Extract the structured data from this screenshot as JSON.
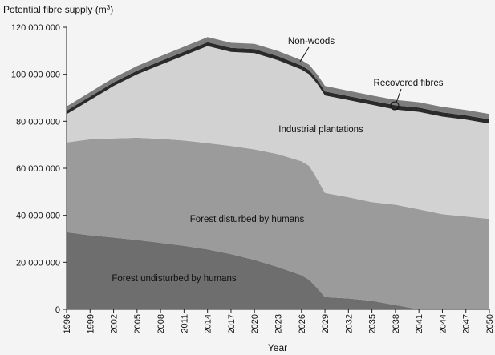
{
  "chart_data": {
    "type": "area",
    "stacked": true,
    "ylabel_base": "Potential fibre supply (m",
    "ylabel_sup": "3",
    "ylabel_end": ")",
    "xlabel": "Year",
    "ylim": [
      0,
      120000000
    ],
    "xlim": [
      1996,
      2050
    ],
    "grid": false,
    "x_ticks": [
      1996,
      1999,
      2002,
      2005,
      2008,
      2011,
      2014,
      2017,
      2020,
      2023,
      2026,
      2029,
      2032,
      2035,
      2038,
      2041,
      2044,
      2047,
      2050
    ],
    "y_ticks": [
      {
        "value": 0,
        "label": "0"
      },
      {
        "value": 20000000,
        "label": "20 000 000"
      },
      {
        "value": 40000000,
        "label": "40 000 000"
      },
      {
        "value": 60000000,
        "label": "60 000 000"
      },
      {
        "value": 80000000,
        "label": "80 000 000"
      },
      {
        "value": 100000000,
        "label": "100 000 000"
      },
      {
        "value": 120000000,
        "label": "120 000 000"
      }
    ],
    "x": [
      1996,
      1999,
      2002,
      2005,
      2008,
      2011,
      2014,
      2017,
      2020,
      2023,
      2026,
      2027,
      2028,
      2029,
      2032,
      2035,
      2038,
      2041,
      2044,
      2047,
      2050
    ],
    "series": [
      {
        "name": "Forest undisturbed by humans",
        "color": "#6e6e6e",
        "values": [
          32800000,
          31500000,
          30500000,
          29500000,
          28300000,
          27000000,
          25500000,
          23500000,
          21000000,
          18000000,
          14500000,
          12500000,
          9000000,
          5200000,
          4600000,
          3600000,
          1800000,
          0,
          0,
          0,
          0
        ]
      },
      {
        "name": "Forest disturbed by humans",
        "color": "#9b9b9b",
        "values": [
          38200000,
          40800000,
          42200000,
          43500000,
          44200000,
          44800000,
          45200000,
          46000000,
          47000000,
          48000000,
          48500000,
          48500000,
          46500000,
          44300000,
          43100000,
          42000000,
          42700000,
          42500000,
          40500000,
          39500000,
          38500000
        ]
      },
      {
        "name": "Industrial plantations",
        "color": "#d2d2d2",
        "values": [
          12000000,
          16700000,
          22300000,
          27000000,
          31500000,
          36200000,
          41300000,
          40000000,
          41000000,
          40000000,
          39000000,
          39000000,
          40500000,
          41500000,
          41300000,
          41400000,
          40500000,
          41500000,
          41500000,
          41200000,
          40500000
        ]
      },
      {
        "name": "Recovered fibres",
        "color": "#2a2a2a",
        "values": [
          1500000,
          1500000,
          1500000,
          1500000,
          1600000,
          1600000,
          1600000,
          1700000,
          1700000,
          1700000,
          1700000,
          1700000,
          1700000,
          1700000,
          1700000,
          1700000,
          1800000,
          1800000,
          1800000,
          1800000,
          1800000
        ]
      },
      {
        "name": "Non-woods",
        "color": "#7c7c7c",
        "values": [
          1800000,
          1900000,
          2000000,
          2000000,
          2100000,
          2100000,
          2200000,
          2200000,
          2200000,
          2200000,
          2300000,
          2300000,
          2300000,
          2300000,
          2300000,
          2300000,
          2300000,
          2300000,
          2300000,
          2300000,
          2300000
        ]
      }
    ],
    "labels": [
      {
        "text": "Non-woods",
        "series": "Non-woods"
      },
      {
        "text": "Recovered fibres",
        "series": "Recovered fibres"
      },
      {
        "text": "Industrial plantations",
        "series": "Industrial plantations"
      },
      {
        "text": "Forest disturbed by humans",
        "series": "Forest disturbed by humans"
      },
      {
        "text": "Forest undisturbed by humans",
        "series": "Forest undisturbed by humans"
      }
    ]
  }
}
